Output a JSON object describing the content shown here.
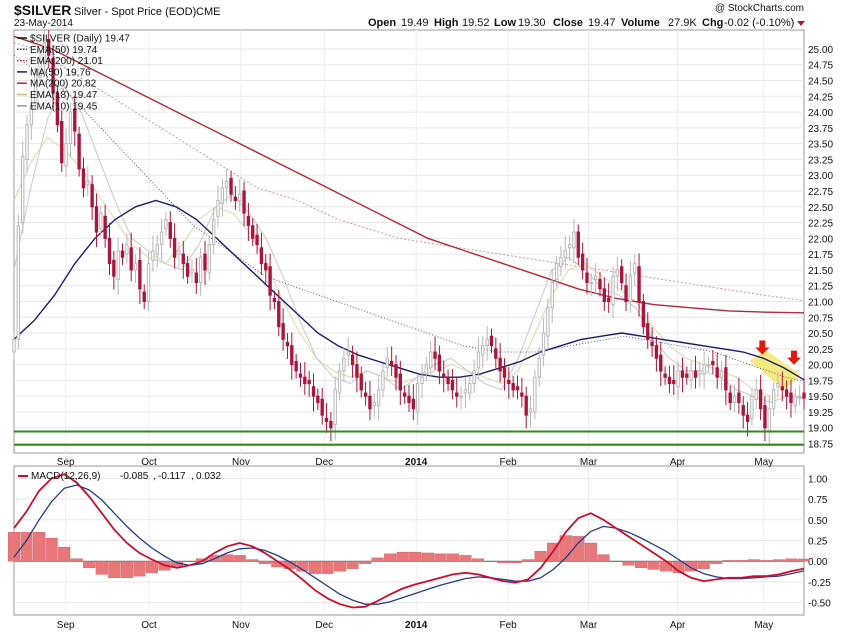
{
  "header": {
    "symbol": "$SILVER",
    "name": "Silver - Spot Price (EOD)",
    "exchange": "CME",
    "date": "23-May-2014",
    "watermark": "@ StockCharts.com",
    "quote": {
      "open_label": "Open",
      "open": "19.49",
      "high_label": "High",
      "high": "19.52",
      "low_label": "Low",
      "low": "19.30",
      "close_label": "Close",
      "close": "19.47",
      "volume_label": "Volume",
      "volume": "27.9K",
      "chg_label": "Chg",
      "chg": "-0.02 (-0.10%)"
    }
  },
  "colors": {
    "up": "#b8b8b8",
    "down": "#a8173c",
    "ema50": "#2b2b7a",
    "ema200": "#c89aa6",
    "ma50": "#1c1c6e",
    "ma200": "#b02a3c",
    "ema18": "#e6dbb6",
    "ema10": "#c8c8c8",
    "support": "#2f8a1c",
    "macd": "#c8102e",
    "signal": "#243c8c",
    "hist": "#e8777a",
    "highlight": "#f3e86a",
    "arrow": "#e0190b"
  },
  "legend": [
    {
      "label": "$SILVER (Daily) 19.47",
      "color": "#111111",
      "kind": "line"
    },
    {
      "label": "EMA(50) 19.74",
      "color": "#2b2b7a",
      "kind": "dot"
    },
    {
      "label": "EMA(200) 21.01",
      "color": "#b02a3c",
      "kind": "dot"
    },
    {
      "label": "MA(50) 19.76",
      "color": "#1c1c6e",
      "kind": "line"
    },
    {
      "label": "MA(200) 20.82",
      "color": "#b02a3c",
      "kind": "line"
    },
    {
      "label": "EMA(18) 19.47",
      "color": "#cfbf7a",
      "kind": "line"
    },
    {
      "label": "EMA(10) 19.45",
      "color": "#9a9a9a",
      "kind": "line"
    }
  ],
  "macd_label": {
    "name": "MACD(12,26,9)",
    "v1": "-0.085",
    "v2": "-0.117",
    "v3": "0.032"
  },
  "chart_data": {
    "type": "candlestick",
    "x_range_days": [
      0,
      275
    ],
    "price_axis": {
      "ylim": [
        18.6,
        25.3
      ],
      "ticks": [
        "25.00",
        "24.75",
        "24.50",
        "24.25",
        "24.00",
        "23.75",
        "23.50",
        "23.25",
        "23.00",
        "22.75",
        "22.50",
        "22.25",
        "22.00",
        "21.75",
        "21.50",
        "21.25",
        "21.00",
        "20.75",
        "20.50",
        "20.25",
        "20.00",
        "19.75",
        "19.50",
        "19.25",
        "19.00",
        "18.75"
      ]
    },
    "month_labels": [
      {
        "label": "Sep",
        "day": 18
      },
      {
        "label": "Oct",
        "day": 47
      },
      {
        "label": "Nov",
        "day": 79
      },
      {
        "label": "Dec",
        "day": 108
      },
      {
        "label": "2014",
        "day": 140,
        "bold": true
      },
      {
        "label": "Feb",
        "day": 172
      },
      {
        "label": "Mar",
        "day": 200
      },
      {
        "label": "Apr",
        "day": 231
      },
      {
        "label": "May",
        "day": 261
      }
    ],
    "closes": [
      20.4,
      22.2,
      23.3,
      23.8,
      24.1,
      24.6,
      24.8,
      25.1,
      24.9,
      24.3,
      23.8,
      23.2,
      23.5,
      24.0,
      23.7,
      23.1,
      22.8,
      22.9,
      22.5,
      22.1,
      22.4,
      22.0,
      21.6,
      21.4,
      21.8,
      21.7,
      21.9,
      21.5,
      21.6,
      21.2,
      21.0,
      21.6,
      21.8,
      21.9,
      22.1,
      22.3,
      22.0,
      21.7,
      21.8,
      21.6,
      21.4,
      21.5,
      21.3,
      21.7,
      21.5,
      21.9,
      22.3,
      22.6,
      22.8,
      22.9,
      22.7,
      22.6,
      22.7,
      22.4,
      22.2,
      22.0,
      21.9,
      21.6,
      21.5,
      21.1,
      21.0,
      20.6,
      20.4,
      20.3,
      20.0,
      19.9,
      19.8,
      19.7,
      19.7,
      19.5,
      19.4,
      19.2,
      19.1,
      19.0,
      19.6,
      19.9,
      20.1,
      20.2,
      20.0,
      19.8,
      19.6,
      19.5,
      19.3,
      19.4,
      19.6,
      19.9,
      20.1,
      20.0,
      19.8,
      19.6,
      19.5,
      19.4,
      19.3,
      19.7,
      19.8,
      20.0,
      20.2,
      20.1,
      19.9,
      19.8,
      19.7,
      19.6,
      19.5,
      19.5,
      19.6,
      19.7,
      19.9,
      20.2,
      20.3,
      20.4,
      20.3,
      20.1,
      19.9,
      19.8,
      19.7,
      19.6,
      19.6,
      19.5,
      19.2,
      19.3,
      19.8,
      20.1,
      20.5,
      20.9,
      21.3,
      21.6,
      21.7,
      21.8,
      21.9,
      22.1,
      21.7,
      21.5,
      21.3,
      21.3,
      21.4,
      21.2,
      21.0,
      21.0,
      21.4,
      21.5,
      21.3,
      21.0,
      21.4,
      21.6,
      21.0,
      20.6,
      20.4,
      20.3,
      20.1,
      19.9,
      19.8,
      19.7,
      19.7,
      19.9,
      19.8,
      19.8,
      19.9,
      19.8,
      19.9,
      20.0,
      20.0,
      20.0,
      19.8,
      19.9,
      19.6,
      19.4,
      19.5,
      19.4,
      19.2,
      19.1,
      19.5,
      19.6,
      19.3,
      19.0,
      19.3,
      19.6,
      19.7,
      19.6,
      19.5,
      19.4,
      19.5,
      19.5,
      19.47
    ],
    "overlays": {
      "ema50": [
        24.9,
        24.7,
        24.5,
        24.3,
        24.0,
        23.7,
        23.4,
        23.1,
        22.8,
        22.5,
        22.2,
        22.0,
        21.8,
        21.6,
        21.4,
        21.3,
        21.2,
        21.1,
        21.0,
        20.9,
        20.8,
        20.7,
        20.6,
        20.5,
        20.4,
        20.3,
        20.25,
        20.2,
        20.2,
        20.2,
        20.25,
        20.3,
        20.35,
        20.4,
        20.45,
        20.4,
        20.35,
        20.3,
        20.25,
        20.2,
        20.1,
        20.0,
        19.9,
        19.8,
        19.74
      ],
      "ema200": [
        25.1,
        25.0,
        24.8,
        24.6,
        24.4,
        24.2,
        24.0,
        23.8,
        23.6,
        23.4,
        23.2,
        23.0,
        22.8,
        22.7,
        22.6,
        22.45,
        22.3,
        22.2,
        22.1,
        22.0,
        21.95,
        21.9,
        21.85,
        21.8,
        21.75,
        21.7,
        21.65,
        21.6,
        21.55,
        21.5,
        21.45,
        21.4,
        21.35,
        21.3,
        21.25,
        21.2,
        21.15,
        21.1,
        21.06,
        21.01
      ],
      "ma50": [
        20.4,
        20.7,
        21.1,
        21.6,
        22.0,
        22.3,
        22.5,
        22.6,
        22.5,
        22.3,
        22.0,
        21.7,
        21.4,
        21.1,
        20.8,
        20.5,
        20.3,
        20.15,
        20.05,
        19.95,
        19.85,
        19.8,
        19.8,
        19.85,
        19.95,
        20.05,
        20.2,
        20.3,
        20.4,
        20.45,
        20.5,
        20.45,
        20.4,
        20.35,
        20.3,
        20.25,
        20.2,
        20.1,
        19.95,
        19.76
      ],
      "ma200": [
        25.2,
        25.0,
        24.7,
        24.4,
        24.1,
        23.8,
        23.5,
        23.2,
        22.9,
        22.6,
        22.3,
        22.0,
        21.8,
        21.6,
        21.4,
        21.2,
        21.05,
        20.95,
        20.9,
        20.85,
        20.83,
        20.82
      ],
      "ema18": [
        22.6,
        23.2,
        23.6,
        23.4,
        23.1,
        22.7,
        22.3,
        21.9,
        21.7,
        21.6,
        21.9,
        22.3,
        22.5,
        22.4,
        22.1,
        21.6,
        21.0,
        20.5,
        20.1,
        19.9,
        19.8,
        19.9,
        19.8,
        19.7,
        19.8,
        19.9,
        20.0,
        19.9,
        19.8,
        19.7,
        19.9,
        20.5,
        21.1,
        21.5,
        21.6,
        21.4,
        21.2,
        21.0,
        20.6,
        20.3,
        20.1,
        20.0,
        19.9,
        19.8,
        19.6,
        19.5,
        19.5,
        19.47
      ],
      "ema10": [
        21.5,
        22.8,
        23.9,
        24.4,
        24.0,
        23.3,
        22.6,
        22.0,
        21.8,
        21.6,
        21.5,
        21.9,
        22.5,
        22.7,
        22.4,
        22.0,
        21.4,
        20.7,
        20.1,
        19.8,
        19.7,
        19.9,
        19.8,
        19.6,
        19.8,
        20.0,
        20.1,
        19.9,
        19.7,
        19.6,
        20.1,
        20.8,
        21.5,
        21.7,
        21.5,
        21.2,
        21.1,
        20.9,
        20.4,
        20.1,
        19.9,
        19.9,
        19.8,
        19.6,
        19.5,
        19.4,
        19.5,
        19.45
      ]
    },
    "support_levels": [
      18.94,
      18.73
    ],
    "annotations": [
      "highlight-zone",
      "arrow-1",
      "arrow-2"
    ],
    "macd_axis": {
      "ylim": [
        -0.65,
        1.15
      ],
      "ticks": [
        "1.00",
        "0.75",
        "0.50",
        "0.25",
        "0.00",
        "-0.25",
        "-0.50"
      ]
    },
    "macd": [
      0.4,
      0.6,
      0.85,
      1.0,
      1.05,
      0.95,
      0.78,
      0.58,
      0.38,
      0.22,
      0.1,
      0.02,
      -0.05,
      -0.08,
      -0.05,
      0.0,
      0.1,
      0.18,
      0.22,
      0.18,
      0.1,
      0.0,
      -0.1,
      -0.22,
      -0.35,
      -0.45,
      -0.52,
      -0.56,
      -0.55,
      -0.48,
      -0.4,
      -0.33,
      -0.28,
      -0.24,
      -0.2,
      -0.16,
      -0.14,
      -0.16,
      -0.2,
      -0.24,
      -0.26,
      -0.22,
      -0.08,
      0.12,
      0.35,
      0.52,
      0.58,
      0.5,
      0.4,
      0.3,
      0.2,
      0.1,
      0.0,
      -0.12,
      -0.2,
      -0.24,
      -0.22,
      -0.2,
      -0.2,
      -0.18,
      -0.18,
      -0.16,
      -0.12,
      -0.09
    ],
    "signal": [
      0.05,
      0.25,
      0.5,
      0.72,
      0.88,
      0.92,
      0.86,
      0.74,
      0.58,
      0.42,
      0.28,
      0.16,
      0.06,
      -0.02,
      -0.05,
      -0.03,
      0.03,
      0.1,
      0.15,
      0.16,
      0.13,
      0.07,
      -0.01,
      -0.1,
      -0.2,
      -0.3,
      -0.4,
      -0.47,
      -0.52,
      -0.52,
      -0.49,
      -0.44,
      -0.39,
      -0.34,
      -0.29,
      -0.25,
      -0.21,
      -0.19,
      -0.2,
      -0.22,
      -0.24,
      -0.24,
      -0.2,
      -0.1,
      0.04,
      0.22,
      0.36,
      0.42,
      0.4,
      0.35,
      0.28,
      0.2,
      0.12,
      0.02,
      -0.08,
      -0.15,
      -0.19,
      -0.21,
      -0.21,
      -0.2,
      -0.19,
      -0.18,
      -0.15,
      -0.117
    ]
  }
}
